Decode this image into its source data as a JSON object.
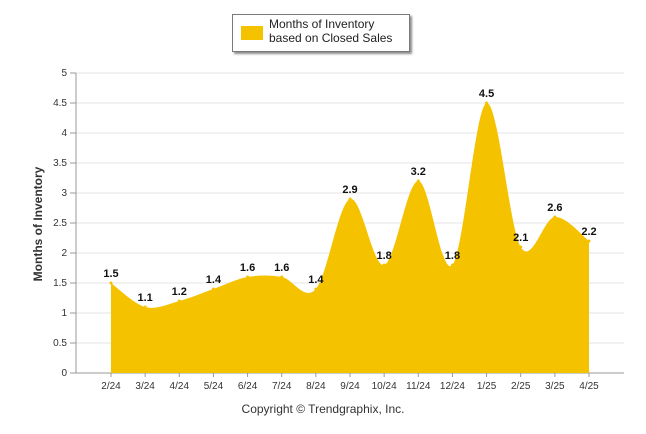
{
  "chart_data": {
    "type": "area",
    "categories": [
      "2/24",
      "3/24",
      "4/24",
      "5/24",
      "6/24",
      "7/24",
      "8/24",
      "9/24",
      "10/24",
      "11/24",
      "12/24",
      "1/25",
      "2/25",
      "3/25",
      "4/25"
    ],
    "series": [
      {
        "name": "Months of Inventory based on Closed Sales",
        "values": [
          1.5,
          1.1,
          1.2,
          1.4,
          1.6,
          1.6,
          1.4,
          2.9,
          1.8,
          3.2,
          1.8,
          4.5,
          2.1,
          2.6,
          2.2
        ],
        "color": "#F5C200"
      }
    ],
    "data_labels": [
      "1.5",
      "1.1",
      "1.2",
      "1.4",
      "1.6",
      "1.6",
      "1.4",
      "2.9",
      "1.8",
      "3.2",
      "1.8",
      "4.5",
      "2.1",
      "2.6",
      "2.2"
    ],
    "ylabel": "Months of Inventory",
    "ylim": [
      0,
      5
    ],
    "yticks": [
      "0",
      "0.5",
      "1",
      "1.5",
      "2",
      "2.5",
      "3",
      "3.5",
      "4",
      "4.5",
      "5"
    ],
    "grid": true,
    "legend_position": "top-center",
    "footer": "Copyright © Trendgraphix, Inc."
  }
}
